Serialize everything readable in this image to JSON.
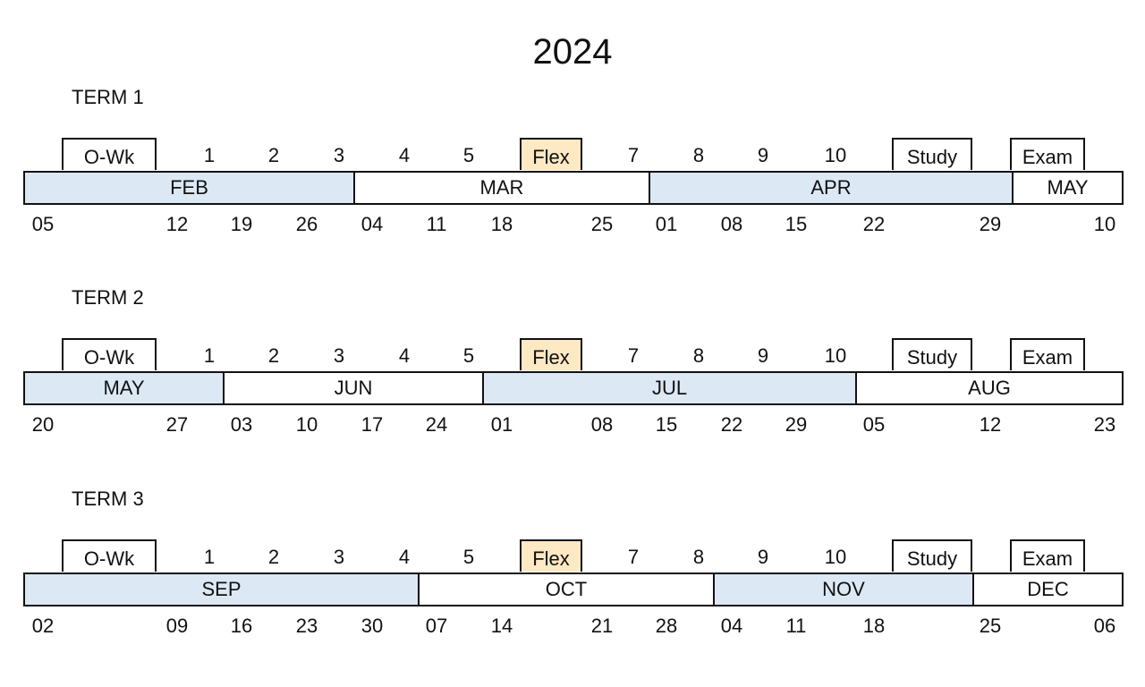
{
  "year": "2024",
  "colors": {
    "month_shade": "#dce8f4",
    "flex_fill": "#fde9c3",
    "border": "#111111"
  },
  "terms": [
    {
      "title": "TERM 1",
      "weeks": [
        "O-Wk",
        "1",
        "2",
        "3",
        "4",
        "5",
        "Flex",
        "7",
        "8",
        "9",
        "10",
        "Study",
        "Exam"
      ],
      "months": [
        {
          "label": "FEB",
          "shaded": true
        },
        {
          "label": "MAR",
          "shaded": false
        },
        {
          "label": "APR",
          "shaded": true
        },
        {
          "label": "MAY",
          "shaded": false
        }
      ],
      "dates": [
        "05",
        "12",
        "19",
        "26",
        "04",
        "11",
        "18",
        "25",
        "01",
        "08",
        "15",
        "22",
        "29",
        "10"
      ]
    },
    {
      "title": "TERM 2",
      "weeks": [
        "O-Wk",
        "1",
        "2",
        "3",
        "4",
        "5",
        "Flex",
        "7",
        "8",
        "9",
        "10",
        "Study",
        "Exam"
      ],
      "months": [
        {
          "label": "MAY",
          "shaded": true
        },
        {
          "label": "JUN",
          "shaded": false
        },
        {
          "label": "JUL",
          "shaded": true
        },
        {
          "label": "AUG",
          "shaded": false
        }
      ],
      "dates": [
        "20",
        "27",
        "03",
        "10",
        "17",
        "24",
        "01",
        "08",
        "15",
        "22",
        "29",
        "05",
        "12",
        "23"
      ]
    },
    {
      "title": "TERM 3",
      "weeks": [
        "O-Wk",
        "1",
        "2",
        "3",
        "4",
        "5",
        "Flex",
        "7",
        "8",
        "9",
        "10",
        "Study",
        "Exam"
      ],
      "months": [
        {
          "label": "SEP",
          "shaded": true
        },
        {
          "label": "OCT",
          "shaded": false
        },
        {
          "label": "NOV",
          "shaded": true
        },
        {
          "label": "DEC",
          "shaded": false
        }
      ],
      "dates": [
        "02",
        "09",
        "16",
        "23",
        "30",
        "07",
        "14",
        "21",
        "28",
        "04",
        "11",
        "18",
        "25",
        "06"
      ]
    }
  ]
}
